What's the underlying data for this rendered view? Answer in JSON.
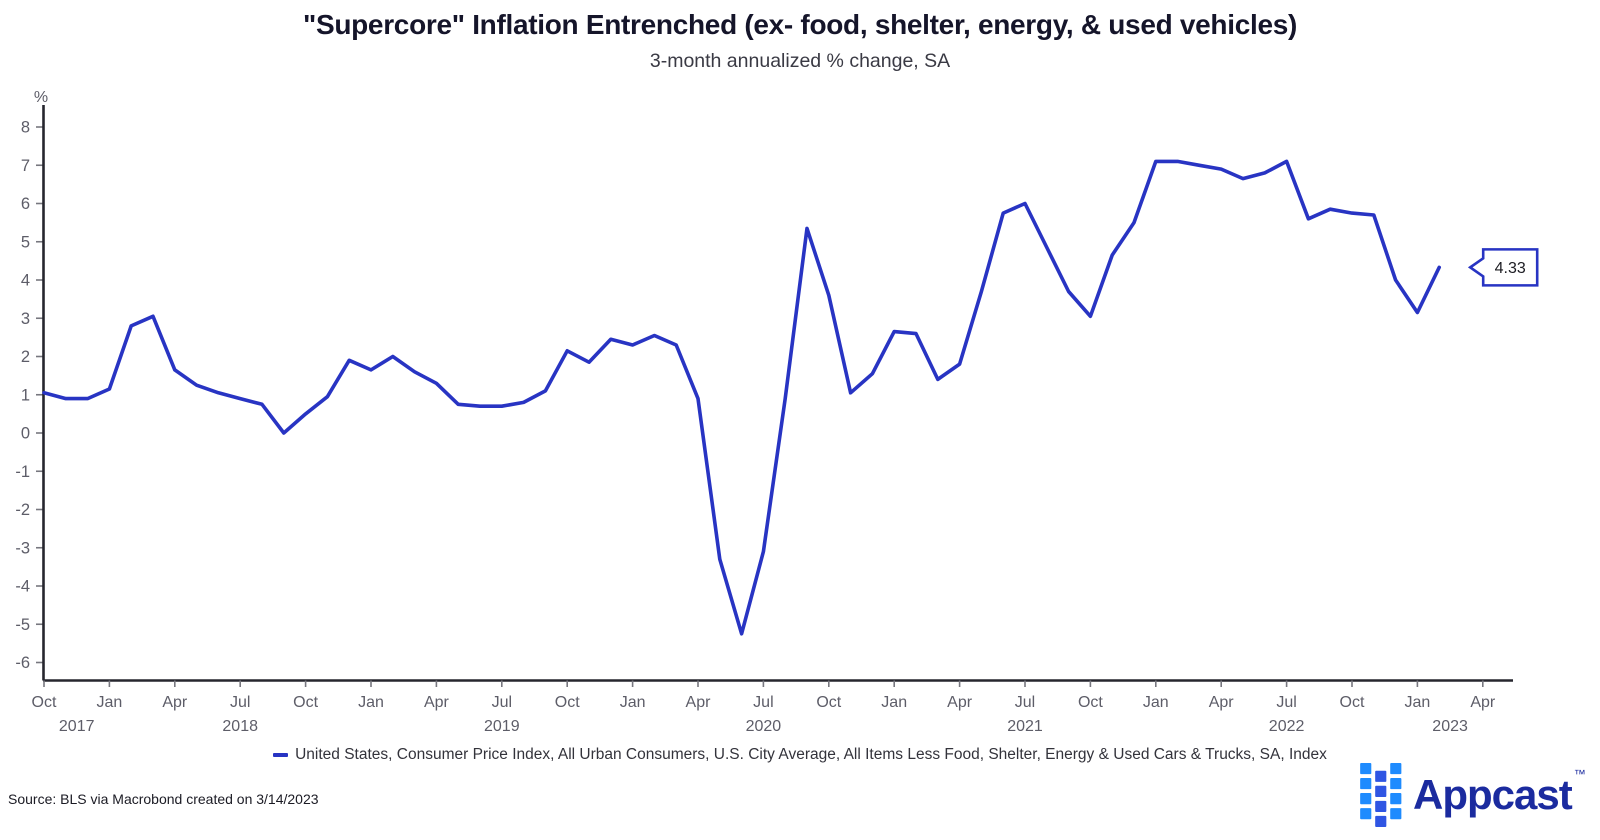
{
  "title": "\"Supercore\" Inflation Entrenched (ex- food, shelter, energy, & used vehicles)",
  "subtitle": "3-month annualized % change, SA",
  "callout": {
    "value": "4.33"
  },
  "legend": {
    "label": "United States, Consumer Price Index, All Urban Consumers, U.S. City Average, All Items Less Food, Shelter, Energy & Used Cars & Trucks, SA, Index"
  },
  "source": "Source: BLS via Macrobond created on 3/14/2023",
  "logo": {
    "text": "Appcast",
    "tm": "™"
  },
  "colors": {
    "line": "#2834c3",
    "axis": "#26262e",
    "tick": "#77777f",
    "logo_text": "#1b2b9f",
    "logo_mark_outer": "#1e8bfe",
    "logo_mark_inner": "#2f55e3"
  },
  "chart_data": {
    "type": "line",
    "title": "\"Supercore\" Inflation Entrenched (ex- food, shelter, energy, & used vehicles)",
    "subtitle": "3-month annualized % change, SA",
    "unit_label": "%",
    "ylim": [
      -6,
      8
    ],
    "ytick_step": 1,
    "grid": false,
    "legend_position": "bottom-center",
    "frequency": "monthly",
    "x_start": "Oct 2017",
    "x_end": "Feb 2023",
    "last_value_label": "4.33",
    "xticks": [
      {
        "m": 0,
        "label": "Oct"
      },
      {
        "m": 3,
        "label": "Jan"
      },
      {
        "m": 6,
        "label": "Apr"
      },
      {
        "m": 9,
        "label": "Jul"
      },
      {
        "m": 12,
        "label": "Oct"
      },
      {
        "m": 15,
        "label": "Jan"
      },
      {
        "m": 18,
        "label": "Apr"
      },
      {
        "m": 21,
        "label": "Jul"
      },
      {
        "m": 24,
        "label": "Oct"
      },
      {
        "m": 27,
        "label": "Jan"
      },
      {
        "m": 30,
        "label": "Apr"
      },
      {
        "m": 33,
        "label": "Jul"
      },
      {
        "m": 36,
        "label": "Oct"
      },
      {
        "m": 39,
        "label": "Jan"
      },
      {
        "m": 42,
        "label": "Apr"
      },
      {
        "m": 45,
        "label": "Jul"
      },
      {
        "m": 48,
        "label": "Oct"
      },
      {
        "m": 51,
        "label": "Jan"
      },
      {
        "m": 54,
        "label": "Apr"
      },
      {
        "m": 57,
        "label": "Jul"
      },
      {
        "m": 60,
        "label": "Oct"
      },
      {
        "m": 63,
        "label": "Jan"
      },
      {
        "m": 66,
        "label": "Apr"
      }
    ],
    "year_labels": [
      {
        "m": 1.5,
        "label": "2017"
      },
      {
        "m": 9,
        "label": "2018"
      },
      {
        "m": 21,
        "label": "2019"
      },
      {
        "m": 33,
        "label": "2020"
      },
      {
        "m": 45,
        "label": "2021"
      },
      {
        "m": 57,
        "label": "2022"
      },
      {
        "m": 64.5,
        "label": "2023"
      }
    ],
    "months": [
      "Oct 2017",
      "Nov 2017",
      "Dec 2017",
      "Jan 2018",
      "Feb 2018",
      "Mar 2018",
      "Apr 2018",
      "May 2018",
      "Jun 2018",
      "Jul 2018",
      "Aug 2018",
      "Sep 2018",
      "Oct 2018",
      "Nov 2018",
      "Dec 2018",
      "Jan 2019",
      "Feb 2019",
      "Mar 2019",
      "Apr 2019",
      "May 2019",
      "Jun 2019",
      "Jul 2019",
      "Aug 2019",
      "Sep 2019",
      "Oct 2019",
      "Nov 2019",
      "Dec 2019",
      "Jan 2020",
      "Feb 2020",
      "Mar 2020",
      "Apr 2020",
      "May 2020",
      "Jun 2020",
      "Jul 2020",
      "Aug 2020",
      "Sep 2020",
      "Oct 2020",
      "Nov 2020",
      "Dec 2020",
      "Jan 2021",
      "Feb 2021",
      "Mar 2021",
      "Apr 2021",
      "May 2021",
      "Jun 2021",
      "Jul 2021",
      "Aug 2021",
      "Sep 2021",
      "Oct 2021",
      "Nov 2021",
      "Dec 2021",
      "Jan 2022",
      "Feb 2022",
      "Mar 2022",
      "Apr 2022",
      "May 2022",
      "Jun 2022",
      "Jul 2022",
      "Aug 2022",
      "Sep 2022",
      "Oct 2022",
      "Nov 2022",
      "Dec 2022",
      "Jan 2023",
      "Feb 2023"
    ],
    "series": [
      {
        "name": "United States, Consumer Price Index, All Urban Consumers, U.S. City Average, All Items Less Food, Shelter, Energy & Used Cars & Trucks, SA, Index",
        "color": "#2834c3",
        "values": [
          1.05,
          0.9,
          0.9,
          1.15,
          2.8,
          3.05,
          1.65,
          1.25,
          1.05,
          0.9,
          0.75,
          0.0,
          0.5,
          0.95,
          1.9,
          1.65,
          2.0,
          1.6,
          1.3,
          0.75,
          0.7,
          0.7,
          0.8,
          1.1,
          2.15,
          1.85,
          2.45,
          2.3,
          2.55,
          2.3,
          0.9,
          -3.3,
          -5.25,
          -3.1,
          0.9,
          5.35,
          3.6,
          1.05,
          1.55,
          2.65,
          2.6,
          1.4,
          1.8,
          3.7,
          5.75,
          6.0,
          4.85,
          3.7,
          3.05,
          4.65,
          5.5,
          7.1,
          7.1,
          7.0,
          6.9,
          6.65,
          6.8,
          7.1,
          5.6,
          5.85,
          5.75,
          5.7,
          4.0,
          3.15,
          4.33
        ]
      }
    ]
  }
}
